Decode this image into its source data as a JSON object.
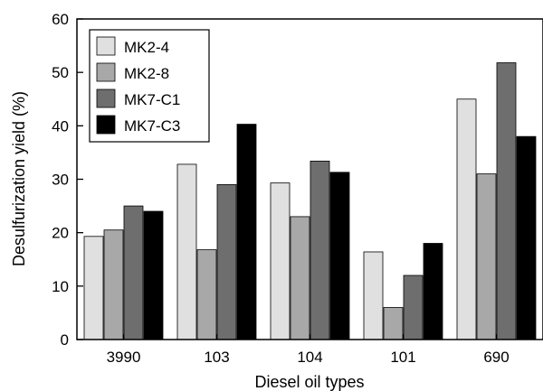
{
  "chart_data": {
    "type": "bar",
    "xlabel": "Diesel oil types",
    "ylabel": "Desulfurization yield (%)",
    "ylim": [
      0,
      60
    ],
    "yticks": [
      0,
      10,
      20,
      30,
      40,
      50,
      60
    ],
    "categories": [
      "3990",
      "103",
      "104",
      "101",
      "690"
    ],
    "series": [
      {
        "name": "MK2-4",
        "color": "#e0e0e0",
        "values": [
          19.3,
          32.8,
          29.3,
          16.4,
          45.0
        ]
      },
      {
        "name": "MK2-8",
        "color": "#a8a8a8",
        "values": [
          20.5,
          16.8,
          23.0,
          6.0,
          31.0
        ]
      },
      {
        "name": "MK7-C1",
        "color": "#6e6e6e",
        "values": [
          25.0,
          29.0,
          33.4,
          12.0,
          51.8
        ]
      },
      {
        "name": "MK7-C3",
        "color": "#000000",
        "values": [
          24.0,
          40.3,
          31.3,
          18.0,
          38.0
        ]
      }
    ],
    "legend_position": "top-left",
    "grid": false
  }
}
